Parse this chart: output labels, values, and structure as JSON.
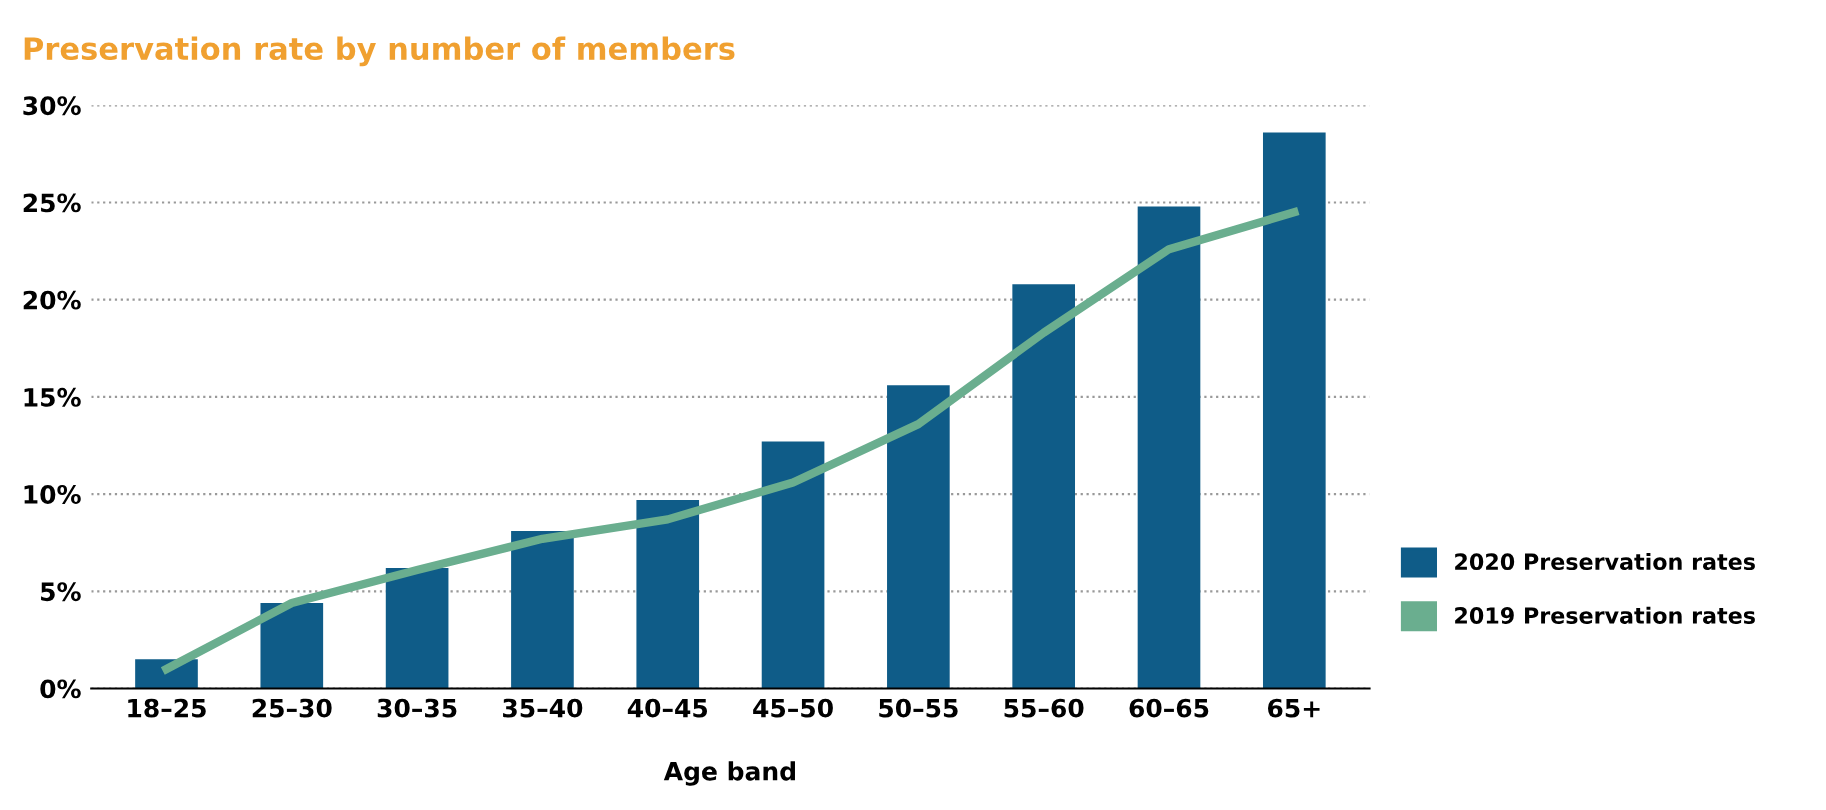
{
  "chart_data": {
    "type": "bar",
    "title": "Preservation rate by number of members",
    "xlabel": "Age band",
    "categories": [
      "18–25",
      "25–30",
      "30–35",
      "35–40",
      "40–45",
      "45–50",
      "50–55",
      "55–60",
      "60–65",
      "65+"
    ],
    "series": [
      {
        "name": "2020 Preservation rates",
        "color": "#0f5c88",
        "values": [
          1.5,
          4.4,
          6.2,
          8.1,
          9.7,
          12.7,
          15.6,
          20.8,
          24.8,
          28.6
        ]
      },
      {
        "name": "2019 Preservation rates",
        "type": "line",
        "color": "#6aae8f",
        "values": [
          1.0,
          4.4,
          6.1,
          7.7,
          8.7,
          10.6,
          13.6,
          18.3,
          22.6,
          24.5
        ]
      }
    ],
    "ylim": [
      0,
      30
    ],
    "yticks": [
      {
        "value": 0,
        "label": "0%"
      },
      {
        "value": 5,
        "label": "5%"
      },
      {
        "value": 10,
        "label": "10%"
      },
      {
        "value": 15,
        "label": "15%"
      },
      {
        "value": 20,
        "label": "20%"
      },
      {
        "value": 25,
        "label": "25%"
      },
      {
        "value": 30,
        "label": "30%"
      }
    ],
    "grid": "y",
    "legend": "right",
    "marker": "none",
    "line_style": "solid"
  }
}
